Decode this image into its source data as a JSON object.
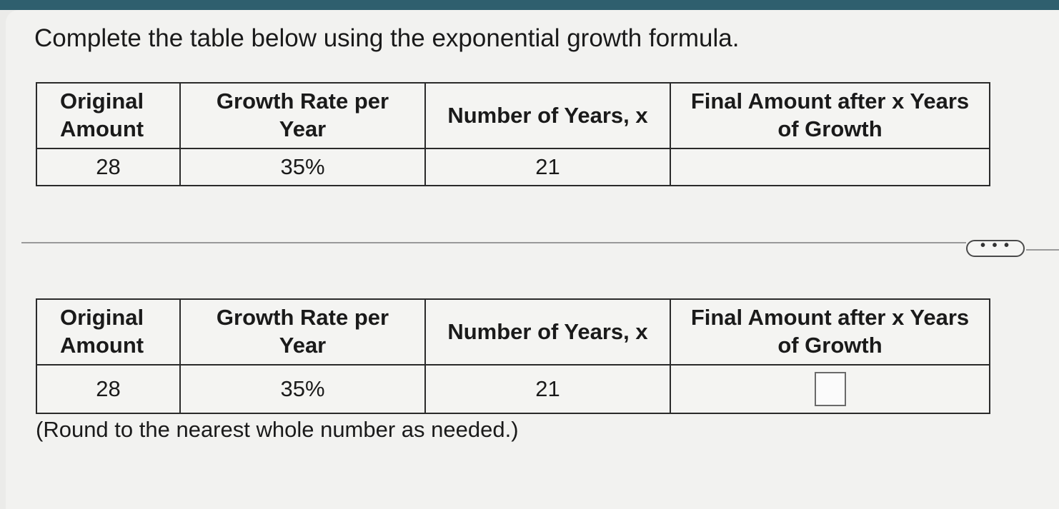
{
  "question": {
    "prompt": "Complete the table below using the exponential growth formula."
  },
  "table": {
    "headers": {
      "original_line1": "Original",
      "original_line2": "Amount",
      "rate_line1": "Growth Rate per",
      "rate_line2": "Year",
      "years": "Number of Years, x",
      "final_line1": "Final Amount after x Years",
      "final_line2": "of Growth"
    },
    "row": {
      "original_amount": "28",
      "growth_rate": "35%",
      "years": "21",
      "final_amount": ""
    }
  },
  "more_button": {
    "label": "• • •"
  },
  "note": "(Round to the nearest whole number as needed.)"
}
